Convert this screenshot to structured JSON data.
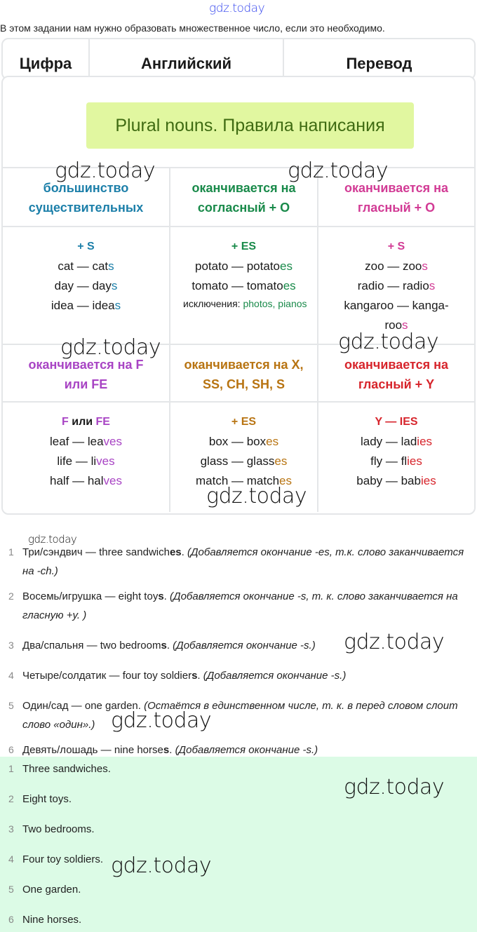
{
  "watermark": "gdz.today",
  "intro": "В этом задании нам нужно образовать множественное число, если это необходимо.",
  "header": [
    "Цифра",
    "Английский",
    "Перевод"
  ],
  "rules_title": "Plural nouns. Правила написания",
  "rules_headers": [
    {
      "text": "большинство существительных",
      "color": "#1c7fa9"
    },
    {
      "text": "оканчивается на согласный + O",
      "color": "#198a4a"
    },
    {
      "text": "оканчивается на гласный + O",
      "color": "#d23b95"
    },
    {
      "text": "оканчивается на F или FE",
      "color": "#a844c4"
    },
    {
      "text": "оканчивается на X, SS, CH, SH, S",
      "color": "#b87412"
    },
    {
      "text": "оканчивается на гласный + Y",
      "color": "#d7252c"
    }
  ],
  "rules_examples": [
    {
      "rule": "+ S",
      "examples": [
        [
          "cat — cat",
          "s"
        ],
        [
          "day — day",
          "s"
        ],
        [
          "idea — idea",
          "s"
        ]
      ]
    },
    {
      "rule": "+ ES",
      "examples": [
        [
          "potato — potato",
          "es"
        ],
        [
          "tomato — tomato",
          "es"
        ]
      ],
      "note_label": "исключения: ",
      "note_value": "photos, pianos"
    },
    {
      "rule": "+ S",
      "examples": [
        [
          "zoo — zoo",
          "s"
        ],
        [
          "radio — radio",
          "s"
        ],
        [
          "kangaroo — kanga-roo",
          "s"
        ]
      ]
    },
    {
      "rule_a": "F",
      "rule_mid": " или ",
      "rule_b": "FE",
      "examples": [
        [
          "leaf — lea",
          "ves"
        ],
        [
          "life — li",
          "ves"
        ],
        [
          "half — hal",
          "ves"
        ]
      ]
    },
    {
      "rule": "+ ES",
      "examples": [
        [
          "box — box",
          "es"
        ],
        [
          "glass — glass",
          "es"
        ],
        [
          "match — match",
          "es"
        ]
      ]
    },
    {
      "rule": "Y — IES",
      "examples": [
        [
          "lady — lad",
          "ies"
        ],
        [
          "fly — fl",
          "ies"
        ],
        [
          "baby — bab",
          "ies"
        ]
      ]
    }
  ],
  "explanations": [
    {
      "n": "1",
      "main": "Три/сэндвич — three sandwich",
      "suffix": "es",
      "exp": "(Добавляется окончание -es, т.к. слово заканчивается на -ch.)"
    },
    {
      "n": "2",
      "main": "Восемь/игрушка — eight toy",
      "suffix": "s",
      "exp": "(Добавляется окончание -s, т. к. слово заканчивается на гласную +y. )"
    },
    {
      "n": "3",
      "main": "Два/спальня — two bedroom",
      "suffix": "s",
      "exp": "(Добавляется окончание -s.)"
    },
    {
      "n": "4",
      "main": "Четыре/солдатик — four toy soldier",
      "suffix": "s",
      "exp": "(Добавляется окончание -s.)"
    },
    {
      "n": "5",
      "main": "Один/сад — one garden.",
      "suffix": "",
      "exp": "(Остаётся в единственном числе, т. к. в перед словом слоит слово «один».)"
    },
    {
      "n": "6",
      "main": "Девять/лошадь — nine horse",
      "suffix": "s",
      "exp": "(Добавляется окончание -s.)"
    }
  ],
  "answers": [
    {
      "n": "1",
      "text": "Three sandwiches."
    },
    {
      "n": "2",
      "text": "Eight toys."
    },
    {
      "n": "3",
      "text": "Two bedrooms."
    },
    {
      "n": "4",
      "text": "Four toy soldiers."
    },
    {
      "n": "5",
      "text": "One garden."
    },
    {
      "n": "6",
      "text": "Nine horses."
    }
  ]
}
